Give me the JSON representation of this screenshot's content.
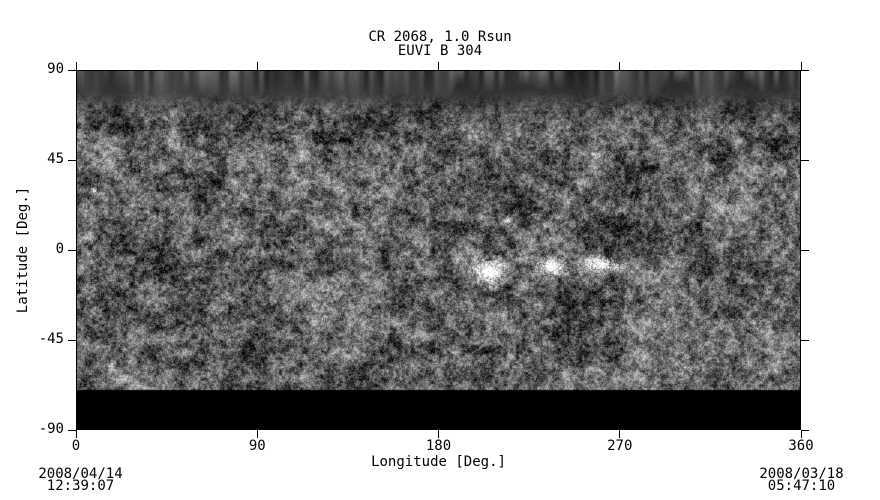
{
  "figure": {
    "title_line1": "CR 2068, 1.0 Rsun",
    "title_line2": "EUVI B 304",
    "xaxis_title": "Longitude [Deg.]",
    "yaxis_title": "Latitude [Deg.]",
    "left_timestamp": {
      "date": "2008/04/14",
      "time": "12:39:07"
    },
    "right_timestamp": {
      "date": "2008/03/18",
      "time": "05:47:10"
    }
  },
  "chart_data": {
    "type": "heatmap",
    "title": "CR 2068, 1.0 Rsun",
    "subtitle": "EUVI B 304",
    "xlabel": "Longitude [Deg.]",
    "ylabel": "Latitude [Deg.]",
    "xlim": [
      0,
      360
    ],
    "ylim": [
      -90,
      90
    ],
    "x_ticks": [
      0,
      90,
      180,
      270,
      360
    ],
    "y_ticks": [
      90,
      45,
      0,
      -45,
      -90
    ],
    "grid": false,
    "colormap": "grayscale",
    "map_kind": "EUV 304A Carrington-rotation synoptic map, mottled chromospheric network texture",
    "left_edge_time": "2008/04/14 12:39:07",
    "right_edge_time": "2008/03/18 05:47:10",
    "features": {
      "north_polar_dark_band": {
        "lat_above": 62,
        "appearance": "dark with bright vertical plume streaks"
      },
      "south_polar_smooth_band": {
        "lat_below": -68,
        "appearance": "darker, horizontally smeared smooth texture"
      },
      "bright_active_regions": [
        {
          "lon": 205,
          "lat": -11,
          "sigma_lon": 5.0,
          "sigma_lat": 3.5,
          "intensity": 150
        },
        {
          "lon": 236,
          "lat": -8,
          "sigma_lon": 4.5,
          "sigma_lat": 2.8,
          "intensity": 165
        },
        {
          "lon": 261,
          "lat": -7,
          "sigma_lon": 5.0,
          "sigma_lat": 2.8,
          "intensity": 165
        },
        {
          "lon": 9,
          "lat": 30,
          "sigma_lon": 1.2,
          "sigma_lat": 1.2,
          "intensity": 110
        },
        {
          "lon": 214,
          "lat": 15,
          "sigma_lon": 1.0,
          "sigma_lat": 1.0,
          "intensity": 80
        }
      ],
      "dark_filament_regions": [
        {
          "lon": 272,
          "lat": 8,
          "sigma_lon": 7.0,
          "sigma_lat": 6.5,
          "intensity": -55
        },
        {
          "lon": 266,
          "lat": 16,
          "sigma_lon": 5.0,
          "sigma_lat": 2.5,
          "intensity": -35
        },
        {
          "lon": 281,
          "lat": -3,
          "sigma_lon": 4.0,
          "sigma_lat": 4.0,
          "intensity": -32
        }
      ]
    }
  }
}
